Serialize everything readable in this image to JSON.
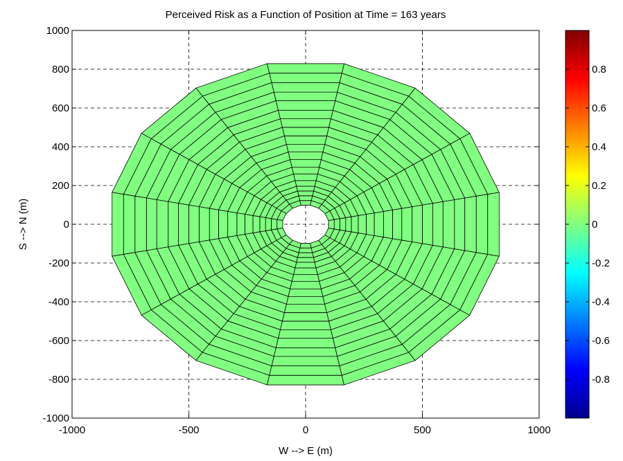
{
  "chart_data": {
    "type": "polar-grid-patch",
    "title": "Perceived Risk as a Function of Position at Time = 163 years",
    "xlabel": "W --> E (m)",
    "ylabel": "S --> N (m)",
    "xlim": [
      -1000,
      1000
    ],
    "ylim": [
      -1000,
      1000
    ],
    "x_ticks": [
      -1000,
      -500,
      0,
      500,
      1000
    ],
    "y_ticks": [
      -1000,
      -800,
      -600,
      -400,
      -200,
      0,
      200,
      400,
      600,
      800,
      1000
    ],
    "grid": true,
    "grid_style": "dashed",
    "mesh": {
      "center": [
        0,
        0
      ],
      "sectors": 16,
      "inner_radius": 100,
      "outer_radius": 845,
      "ring_radii": [
        100,
        125,
        150,
        175,
        200,
        230,
        265,
        300,
        340,
        380,
        420,
        465,
        510,
        555,
        600,
        650,
        695,
        745,
        795,
        845
      ],
      "risk_value": 0,
      "fill_color": "#80ff80",
      "edge_color": "#000000"
    },
    "colorbar": {
      "colormap": "jet",
      "range": [
        -1,
        1
      ],
      "ticks": [
        -0.8,
        -0.6,
        -0.4,
        -0.2,
        0,
        0.2,
        0.4,
        0.6,
        0.8
      ],
      "tick_labels": [
        "-0.8",
        "-0.6",
        "-0.4",
        "-0.2",
        "0",
        "0.2",
        "0.4",
        "0.6",
        "0.8"
      ]
    }
  }
}
